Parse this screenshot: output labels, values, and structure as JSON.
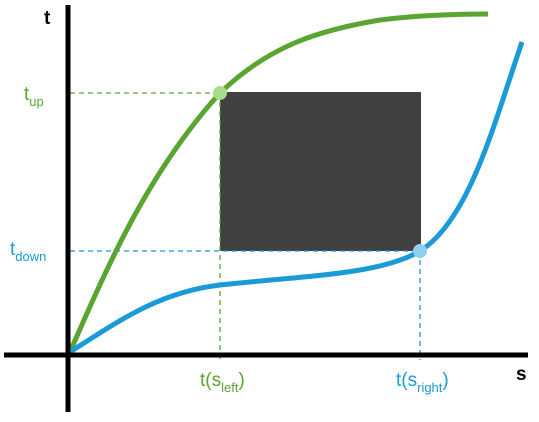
{
  "axes": {
    "y_label": "t",
    "x_label": "s"
  },
  "labels": {
    "t_up": {
      "base": "t",
      "sub": "up"
    },
    "t_down": {
      "base": "t",
      "sub": "down"
    },
    "t_s_left": {
      "prefix": "t(s",
      "sub": "left",
      "suffix": ")"
    },
    "t_s_right": {
      "prefix": "t(s",
      "sub": "right",
      "suffix": ")"
    }
  }
}
